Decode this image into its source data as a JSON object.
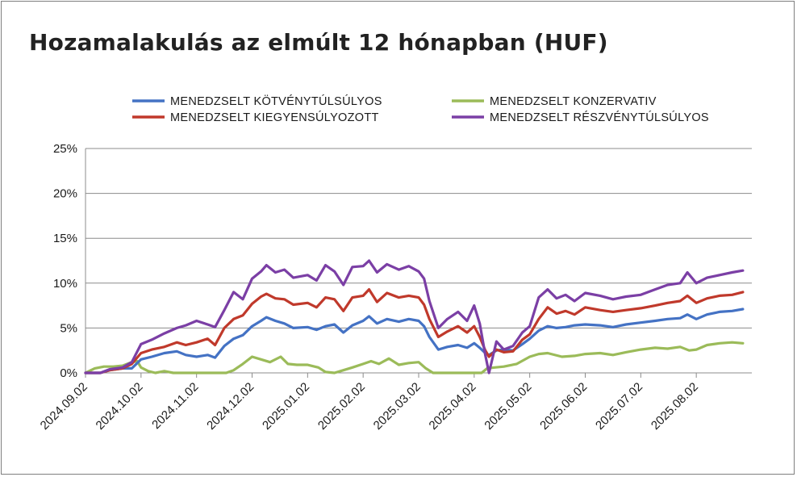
{
  "chart_data": {
    "type": "line",
    "title": "Hozamalakulás az elmúlt 12 hónapban (HUF)",
    "xlabel": "",
    "ylabel": "",
    "ylim": [
      0,
      25
    ],
    "y_ticks": [
      "0%",
      "5%",
      "10%",
      "15%",
      "20%",
      "25%"
    ],
    "x_ticks": [
      "2024.09.02",
      "2024.10.02",
      "2024.11.02",
      "2024.12.02",
      "2025.01.02",
      "2025.02.02",
      "2025.03.02",
      "2025.04.02",
      "2025.05.02",
      "2025.06.02",
      "2025.07.02",
      "2025.08.02"
    ],
    "legend_position": "top",
    "grid": "horizontal",
    "series": [
      {
        "name": "MENEDZSELT KÖTVÉNYTÚLSÚLYOS",
        "color": "#4472c4",
        "points": [
          [
            "2024.09.02",
            0
          ],
          [
            "2024.09.10",
            0
          ],
          [
            "2024.09.15",
            0.3
          ],
          [
            "2024.09.22",
            0.5
          ],
          [
            "2024.09.27",
            0.5
          ],
          [
            "2024.10.02",
            1.5
          ],
          [
            "2024.10.08",
            1.8
          ],
          [
            "2024.10.15",
            2.2
          ],
          [
            "2024.10.22",
            2.4
          ],
          [
            "2024.10.27",
            2.0
          ],
          [
            "2024.11.02",
            1.8
          ],
          [
            "2024.11.08",
            2.0
          ],
          [
            "2024.11.12",
            1.7
          ],
          [
            "2024.11.17",
            3.0
          ],
          [
            "2024.11.22",
            3.8
          ],
          [
            "2024.11.27",
            4.2
          ],
          [
            "2024.12.02",
            5.2
          ],
          [
            "2024.12.07",
            5.8
          ],
          [
            "2024.12.10",
            6.2
          ],
          [
            "2024.12.15",
            5.8
          ],
          [
            "2024.12.20",
            5.5
          ],
          [
            "2024.12.25",
            5.0
          ],
          [
            "2025.01.02",
            5.1
          ],
          [
            "2025.01.07",
            4.8
          ],
          [
            "2025.01.12",
            5.2
          ],
          [
            "2025.01.17",
            5.4
          ],
          [
            "2025.01.22",
            4.5
          ],
          [
            "2025.01.27",
            5.3
          ],
          [
            "2025.02.02",
            5.8
          ],
          [
            "2025.02.05",
            6.3
          ],
          [
            "2025.02.09",
            5.5
          ],
          [
            "2025.02.14",
            6.0
          ],
          [
            "2025.02.20",
            5.7
          ],
          [
            "2025.02.25",
            6.0
          ],
          [
            "2025.03.02",
            5.8
          ],
          [
            "2025.03.05",
            5.2
          ],
          [
            "2025.03.08",
            4.0
          ],
          [
            "2025.03.13",
            2.6
          ],
          [
            "2025.03.18",
            2.9
          ],
          [
            "2025.03.24",
            3.1
          ],
          [
            "2025.03.29",
            2.8
          ],
          [
            "2025.04.02",
            3.3
          ],
          [
            "2025.04.05",
            2.8
          ],
          [
            "2025.04.08",
            2.2
          ],
          [
            "2025.04.10",
            2.0
          ],
          [
            "2025.04.14",
            2.5
          ],
          [
            "2025.04.18",
            2.6
          ],
          [
            "2025.04.23",
            2.5
          ],
          [
            "2025.04.28",
            3.2
          ],
          [
            "2025.05.02",
            3.8
          ],
          [
            "2025.05.07",
            4.7
          ],
          [
            "2025.05.12",
            5.2
          ],
          [
            "2025.05.17",
            5.0
          ],
          [
            "2025.05.22",
            5.1
          ],
          [
            "2025.05.27",
            5.3
          ],
          [
            "2025.06.02",
            5.4
          ],
          [
            "2025.06.10",
            5.3
          ],
          [
            "2025.06.17",
            5.1
          ],
          [
            "2025.06.24",
            5.4
          ],
          [
            "2025.07.02",
            5.6
          ],
          [
            "2025.07.10",
            5.8
          ],
          [
            "2025.07.17",
            6.0
          ],
          [
            "2025.07.24",
            6.1
          ],
          [
            "2025.07.28",
            6.5
          ],
          [
            "2025.08.02",
            6.0
          ],
          [
            "2025.08.08",
            6.5
          ],
          [
            "2025.08.15",
            6.8
          ],
          [
            "2025.08.22",
            6.9
          ],
          [
            "2025.08.28",
            7.1
          ]
        ]
      },
      {
        "name": "MENEDZSELT KONZERVATIV",
        "color": "#9bbb59",
        "points": [
          [
            "2024.09.02",
            0
          ],
          [
            "2024.09.07",
            0.5
          ],
          [
            "2024.09.12",
            0.7
          ],
          [
            "2024.09.17",
            0.7
          ],
          [
            "2024.09.22",
            0.8
          ],
          [
            "2024.09.27",
            1.2
          ],
          [
            "2024.09.30",
            1.3
          ],
          [
            "2024.10.02",
            0.6
          ],
          [
            "2024.10.06",
            0.2
          ],
          [
            "2024.10.10",
            0
          ],
          [
            "2024.10.15",
            0.2
          ],
          [
            "2024.10.20",
            0
          ],
          [
            "2024.10.25",
            0
          ],
          [
            "2024.11.02",
            0
          ],
          [
            "2024.11.10",
            0
          ],
          [
            "2024.11.18",
            0
          ],
          [
            "2024.11.22",
            0.3
          ],
          [
            "2024.11.27",
            1.0
          ],
          [
            "2024.12.02",
            1.8
          ],
          [
            "2024.12.07",
            1.5
          ],
          [
            "2024.12.12",
            1.2
          ],
          [
            "2024.12.18",
            1.8
          ],
          [
            "2024.12.22",
            1.0
          ],
          [
            "2024.12.27",
            0.9
          ],
          [
            "2025.01.02",
            0.9
          ],
          [
            "2025.01.08",
            0.6
          ],
          [
            "2025.01.12",
            0.1
          ],
          [
            "2025.01.17",
            0
          ],
          [
            "2025.01.22",
            0.3
          ],
          [
            "2025.01.27",
            0.6
          ],
          [
            "2025.02.02",
            1.0
          ],
          [
            "2025.02.06",
            1.3
          ],
          [
            "2025.02.10",
            1.0
          ],
          [
            "2025.02.15",
            1.6
          ],
          [
            "2025.02.20",
            0.9
          ],
          [
            "2025.02.25",
            1.1
          ],
          [
            "2025.03.02",
            1.2
          ],
          [
            "2025.03.06",
            0.5
          ],
          [
            "2025.03.10",
            0
          ],
          [
            "2025.03.20",
            0
          ],
          [
            "2025.04.02",
            0
          ],
          [
            "2025.04.06",
            0
          ],
          [
            "2025.04.09",
            0.5
          ],
          [
            "2025.04.13",
            0.6
          ],
          [
            "2025.04.18",
            0.7
          ],
          [
            "2025.04.25",
            1.0
          ],
          [
            "2025.05.02",
            1.8
          ],
          [
            "2025.05.07",
            2.1
          ],
          [
            "2025.05.12",
            2.2
          ],
          [
            "2025.05.20",
            1.8
          ],
          [
            "2025.05.27",
            1.9
          ],
          [
            "2025.06.02",
            2.1
          ],
          [
            "2025.06.10",
            2.2
          ],
          [
            "2025.06.17",
            2.0
          ],
          [
            "2025.06.24",
            2.3
          ],
          [
            "2025.07.02",
            2.6
          ],
          [
            "2025.07.10",
            2.8
          ],
          [
            "2025.07.17",
            2.7
          ],
          [
            "2025.07.24",
            2.9
          ],
          [
            "2025.07.29",
            2.5
          ],
          [
            "2025.08.02",
            2.6
          ],
          [
            "2025.08.08",
            3.1
          ],
          [
            "2025.08.15",
            3.3
          ],
          [
            "2025.08.22",
            3.4
          ],
          [
            "2025.08.28",
            3.3
          ]
        ]
      },
      {
        "name": "MENEDZSELT KIEGYENSÚLYOZOTT",
        "color": "#c0392b",
        "points": [
          [
            "2024.09.02",
            0
          ],
          [
            "2024.09.10",
            0
          ],
          [
            "2024.09.15",
            0.3
          ],
          [
            "2024.09.22",
            0.5
          ],
          [
            "2024.09.27",
            1.0
          ],
          [
            "2024.10.02",
            2.2
          ],
          [
            "2024.10.08",
            2.6
          ],
          [
            "2024.10.15",
            2.9
          ],
          [
            "2024.10.22",
            3.4
          ],
          [
            "2024.10.27",
            3.1
          ],
          [
            "2024.11.02",
            3.4
          ],
          [
            "2024.11.08",
            3.8
          ],
          [
            "2024.11.12",
            3.1
          ],
          [
            "2024.11.17",
            5.0
          ],
          [
            "2024.11.22",
            6.0
          ],
          [
            "2024.11.27",
            6.4
          ],
          [
            "2024.12.02",
            7.7
          ],
          [
            "2024.12.07",
            8.5
          ],
          [
            "2024.12.10",
            8.8
          ],
          [
            "2024.12.15",
            8.3
          ],
          [
            "2024.12.20",
            8.2
          ],
          [
            "2024.12.25",
            7.6
          ],
          [
            "2025.01.02",
            7.8
          ],
          [
            "2025.01.07",
            7.3
          ],
          [
            "2025.01.12",
            8.4
          ],
          [
            "2025.01.17",
            8.2
          ],
          [
            "2025.01.22",
            6.9
          ],
          [
            "2025.01.27",
            8.4
          ],
          [
            "2025.02.02",
            8.6
          ],
          [
            "2025.02.05",
            9.3
          ],
          [
            "2025.02.09",
            7.9
          ],
          [
            "2025.02.14",
            8.9
          ],
          [
            "2025.02.20",
            8.4
          ],
          [
            "2025.02.25",
            8.6
          ],
          [
            "2025.03.02",
            8.4
          ],
          [
            "2025.03.05",
            7.6
          ],
          [
            "2025.03.08",
            6.0
          ],
          [
            "2025.03.13",
            4.0
          ],
          [
            "2025.03.18",
            4.6
          ],
          [
            "2025.03.24",
            5.2
          ],
          [
            "2025.03.29",
            4.5
          ],
          [
            "2025.04.02",
            5.2
          ],
          [
            "2025.04.05",
            4.0
          ],
          [
            "2025.04.08",
            2.5
          ],
          [
            "2025.04.10",
            1.8
          ],
          [
            "2025.04.14",
            2.6
          ],
          [
            "2025.04.18",
            2.3
          ],
          [
            "2025.04.23",
            2.4
          ],
          [
            "2025.04.28",
            3.7
          ],
          [
            "2025.05.02",
            4.3
          ],
          [
            "2025.05.07",
            6.0
          ],
          [
            "2025.05.12",
            7.3
          ],
          [
            "2025.05.17",
            6.6
          ],
          [
            "2025.05.22",
            6.9
          ],
          [
            "2025.05.27",
            6.5
          ],
          [
            "2025.06.02",
            7.3
          ],
          [
            "2025.06.10",
            7.0
          ],
          [
            "2025.06.17",
            6.8
          ],
          [
            "2025.06.24",
            7.0
          ],
          [
            "2025.07.02",
            7.2
          ],
          [
            "2025.07.10",
            7.5
          ],
          [
            "2025.07.17",
            7.8
          ],
          [
            "2025.07.24",
            8.0
          ],
          [
            "2025.07.28",
            8.6
          ],
          [
            "2025.08.02",
            7.8
          ],
          [
            "2025.08.08",
            8.3
          ],
          [
            "2025.08.15",
            8.6
          ],
          [
            "2025.08.22",
            8.7
          ],
          [
            "2025.08.28",
            9.0
          ]
        ]
      },
      {
        "name": "MENEDZSELT RÉSZVÉNYTÚLSÚLYOS",
        "color": "#7b3fa5",
        "points": [
          [
            "2024.09.02",
            0
          ],
          [
            "2024.09.10",
            0
          ],
          [
            "2024.09.15",
            0.4
          ],
          [
            "2024.09.22",
            0.6
          ],
          [
            "2024.09.27",
            1.2
          ],
          [
            "2024.10.02",
            3.2
          ],
          [
            "2024.10.08",
            3.7
          ],
          [
            "2024.10.15",
            4.4
          ],
          [
            "2024.10.22",
            5.0
          ],
          [
            "2024.10.27",
            5.3
          ],
          [
            "2024.11.02",
            5.8
          ],
          [
            "2024.11.08",
            5.4
          ],
          [
            "2024.11.12",
            5.1
          ],
          [
            "2024.11.17",
            7.0
          ],
          [
            "2024.11.22",
            9.0
          ],
          [
            "2024.11.27",
            8.2
          ],
          [
            "2024.12.02",
            10.5
          ],
          [
            "2024.12.07",
            11.3
          ],
          [
            "2024.12.10",
            12.0
          ],
          [
            "2024.12.15",
            11.2
          ],
          [
            "2024.12.20",
            11.5
          ],
          [
            "2024.12.25",
            10.6
          ],
          [
            "2025.01.02",
            10.9
          ],
          [
            "2025.01.07",
            10.3
          ],
          [
            "2025.01.12",
            12.0
          ],
          [
            "2025.01.17",
            11.3
          ],
          [
            "2025.01.22",
            9.8
          ],
          [
            "2025.01.27",
            11.8
          ],
          [
            "2025.02.02",
            11.9
          ],
          [
            "2025.02.05",
            12.5
          ],
          [
            "2025.02.09",
            11.2
          ],
          [
            "2025.02.14",
            12.1
          ],
          [
            "2025.02.20",
            11.5
          ],
          [
            "2025.02.25",
            11.9
          ],
          [
            "2025.03.02",
            11.3
          ],
          [
            "2025.03.05",
            10.5
          ],
          [
            "2025.03.08",
            8.0
          ],
          [
            "2025.03.13",
            5.0
          ],
          [
            "2025.03.18",
            6.0
          ],
          [
            "2025.03.24",
            6.8
          ],
          [
            "2025.03.29",
            5.8
          ],
          [
            "2025.04.02",
            7.5
          ],
          [
            "2025.04.05",
            5.5
          ],
          [
            "2025.04.08",
            2.0
          ],
          [
            "2025.04.10",
            0
          ],
          [
            "2025.04.14",
            3.5
          ],
          [
            "2025.04.18",
            2.6
          ],
          [
            "2025.04.23",
            3.0
          ],
          [
            "2025.04.28",
            4.5
          ],
          [
            "2025.05.02",
            5.2
          ],
          [
            "2025.05.07",
            8.4
          ],
          [
            "2025.05.12",
            9.3
          ],
          [
            "2025.05.17",
            8.3
          ],
          [
            "2025.05.22",
            8.7
          ],
          [
            "2025.05.27",
            8.0
          ],
          [
            "2025.06.02",
            8.9
          ],
          [
            "2025.06.10",
            8.6
          ],
          [
            "2025.06.17",
            8.2
          ],
          [
            "2025.06.24",
            8.5
          ],
          [
            "2025.07.02",
            8.7
          ],
          [
            "2025.07.10",
            9.3
          ],
          [
            "2025.07.17",
            9.8
          ],
          [
            "2025.07.24",
            10.0
          ],
          [
            "2025.07.28",
            11.2
          ],
          [
            "2025.08.02",
            10.0
          ],
          [
            "2025.08.08",
            10.6
          ],
          [
            "2025.08.15",
            10.9
          ],
          [
            "2025.08.22",
            11.2
          ],
          [
            "2025.08.28",
            11.4
          ]
        ]
      }
    ]
  }
}
